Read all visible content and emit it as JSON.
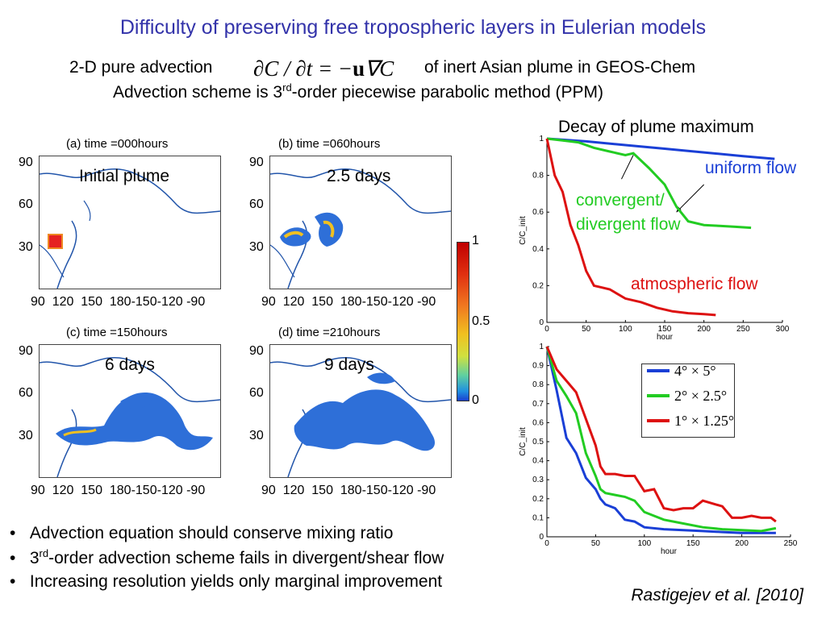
{
  "slide": {
    "title": "Difficulty of preserving free tropospheric layers in Eulerian models",
    "subtitle1_a": "2-D pure advection",
    "equation_a": "∂C / ∂t = −",
    "equation_u": "u",
    "equation_b": "∇C",
    "subtitle1_b": "of inert Asian plume in GEOS-Chem",
    "subtitle2_pre": "Advection scheme is 3",
    "subtitle2_sup": "rd",
    "subtitle2_post": "-order piecewise parabolic method (PPM)",
    "citation": "Rastigejev et al. [2010]"
  },
  "maps": {
    "panels": [
      {
        "title": "(a) time =000hours",
        "overlay": "Initial plume"
      },
      {
        "title": "(b) time =060hours",
        "overlay": "2.5 days"
      },
      {
        "title": "(c) time =150hours",
        "overlay": "6 days"
      },
      {
        "title": "(d) time =210hours",
        "overlay": "9 days"
      }
    ],
    "y_ticks": [
      "90",
      "60",
      "30"
    ],
    "x_ticks": [
      "90",
      "120",
      "150",
      "180",
      "-150",
      "-120",
      "-90"
    ],
    "colorbar_ticks": [
      "1",
      "0.5",
      "0"
    ]
  },
  "bullets": {
    "b1": "Advection equation should conserve mixing ratio",
    "b2_pre": "3",
    "b2_sup": "rd",
    "b2_post": "-order advection scheme fails in divergent/shear flow",
    "b3": "Increasing resolution yields only marginal improvement"
  },
  "colors": {
    "title": "#3333aa",
    "uniform": "#1a3fd6",
    "convergent": "#22cc22",
    "atmospheric": "#dd1111"
  },
  "chart_data": [
    {
      "type": "line",
      "title": "Decay of plume maximum",
      "xlabel": "hour",
      "ylabel": "C/C_init",
      "xlim": [
        0,
        300
      ],
      "ylim": [
        0,
        1
      ],
      "x_ticks": [
        0,
        50,
        100,
        150,
        200,
        250,
        300
      ],
      "y_ticks": [
        0,
        0.2,
        0.4,
        0.6,
        0.8,
        1
      ],
      "series": [
        {
          "name": "uniform flow",
          "color": "#1a3fd6",
          "x": [
            0,
            50,
            100,
            150,
            200,
            250,
            290
          ],
          "y": [
            1,
            0.985,
            0.965,
            0.945,
            0.925,
            0.905,
            0.89
          ]
        },
        {
          "name": "convergent/ divergent flow",
          "color": "#22cc22",
          "x": [
            0,
            20,
            40,
            60,
            80,
            100,
            110,
            130,
            150,
            165,
            180,
            200,
            220,
            240,
            260
          ],
          "y": [
            1,
            0.99,
            0.98,
            0.95,
            0.93,
            0.91,
            0.92,
            0.84,
            0.75,
            0.63,
            0.55,
            0.53,
            0.525,
            0.52,
            0.515
          ]
        },
        {
          "name": "atmospheric flow",
          "color": "#dd1111",
          "x": [
            0,
            10,
            20,
            30,
            40,
            50,
            60,
            70,
            80,
            100,
            120,
            140,
            160,
            180,
            200,
            215
          ],
          "y": [
            1,
            0.8,
            0.71,
            0.53,
            0.42,
            0.28,
            0.2,
            0.19,
            0.18,
            0.13,
            0.11,
            0.08,
            0.06,
            0.05,
            0.045,
            0.04
          ]
        }
      ],
      "annotations": [
        "uniform flow",
        "convergent/",
        "divergent flow",
        "atmospheric flow"
      ]
    },
    {
      "type": "line",
      "xlabel": "hour",
      "ylabel": "C/C_init",
      "xlim": [
        0,
        250
      ],
      "ylim": [
        0,
        1
      ],
      "x_ticks": [
        0,
        50,
        100,
        150,
        200,
        250
      ],
      "y_ticks": [
        0,
        0.1,
        0.2,
        0.3,
        0.4,
        0.5,
        0.6,
        0.7,
        0.8,
        0.9,
        1
      ],
      "legend_position": "top-right",
      "series": [
        {
          "name": "4° × 5°",
          "color": "#1a3fd6",
          "x": [
            0,
            10,
            20,
            30,
            40,
            50,
            55,
            60,
            70,
            80,
            90,
            100,
            120,
            140,
            160,
            180,
            200,
            220,
            235
          ],
          "y": [
            1,
            0.77,
            0.52,
            0.44,
            0.31,
            0.25,
            0.2,
            0.17,
            0.15,
            0.09,
            0.08,
            0.05,
            0.04,
            0.035,
            0.03,
            0.025,
            0.02,
            0.02,
            0.02
          ]
        },
        {
          "name": "2° × 2.5°",
          "color": "#22cc22",
          "x": [
            0,
            10,
            20,
            30,
            40,
            50,
            55,
            60,
            70,
            80,
            90,
            100,
            120,
            140,
            160,
            180,
            200,
            220,
            235
          ],
          "y": [
            1,
            0.82,
            0.74,
            0.65,
            0.44,
            0.32,
            0.25,
            0.23,
            0.22,
            0.21,
            0.19,
            0.13,
            0.09,
            0.07,
            0.05,
            0.04,
            0.035,
            0.03,
            0.045
          ]
        },
        {
          "name": "1° × 1.25°",
          "color": "#dd1111",
          "x": [
            0,
            10,
            20,
            30,
            40,
            50,
            55,
            60,
            70,
            80,
            90,
            100,
            110,
            120,
            130,
            140,
            150,
            160,
            180,
            190,
            200,
            210,
            220,
            230,
            235
          ],
          "y": [
            1,
            0.88,
            0.82,
            0.76,
            0.62,
            0.48,
            0.37,
            0.33,
            0.33,
            0.32,
            0.32,
            0.24,
            0.25,
            0.15,
            0.14,
            0.15,
            0.15,
            0.19,
            0.16,
            0.1,
            0.1,
            0.11,
            0.1,
            0.1,
            0.08
          ]
        }
      ]
    }
  ]
}
